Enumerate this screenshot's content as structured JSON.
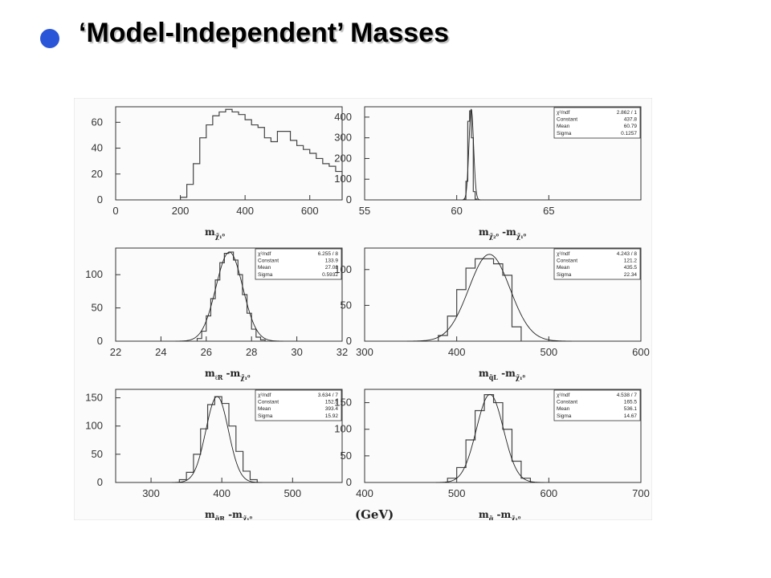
{
  "slide": {
    "title": "‘Model-Independent’ Masses",
    "accent": "#2b55d8"
  },
  "figure": {
    "unit_label": "(GeV)"
  },
  "chart_data": [
    {
      "type": "bar",
      "xlim": [
        0,
        700
      ],
      "ylim": [
        0,
        72
      ],
      "xticks": [
        0,
        200,
        400,
        600
      ],
      "yticks": [
        0,
        20,
        40,
        60
      ],
      "xlabel": {
        "main": "m",
        "sub": "χ̃₁⁰"
      },
      "bin_width": 20,
      "x": [
        200,
        220,
        240,
        260,
        280,
        300,
        320,
        340,
        360,
        380,
        400,
        420,
        440,
        460,
        480,
        500,
        520,
        540,
        560,
        580,
        600,
        620,
        640,
        660,
        680
      ],
      "values": [
        2,
        12,
        28,
        48,
        58,
        65,
        68,
        70,
        68,
        66,
        62,
        58,
        56,
        48,
        45,
        53,
        53,
        46,
        42,
        39,
        36,
        32,
        28,
        26,
        22
      ],
      "stats": null,
      "fit": null
    },
    {
      "type": "bar",
      "xlim": [
        55,
        70
      ],
      "ylim": [
        0,
        450
      ],
      "xticks": [
        55,
        60,
        65
      ],
      "yticks": [
        0,
        100,
        200,
        300,
        400
      ],
      "xlabel": {
        "main": "m",
        "sub": "χ̃₂⁰",
        "mid": "-m",
        "sub2": "χ̃₁⁰"
      },
      "bin_width": 0.1,
      "x": [
        60.4,
        60.5,
        60.6,
        60.7,
        60.8,
        60.9,
        61.0
      ],
      "values": [
        4,
        90,
        380,
        430,
        300,
        40,
        4
      ],
      "stats": {
        "chi2_ndf": "2.862",
        "ndf": "1",
        "constant": "437.8",
        "mean": "60.79",
        "sigma": "0.1257"
      },
      "fit": {
        "constant": 437.8,
        "mean": 60.79,
        "sigma": 0.1257
      }
    },
    {
      "type": "bar",
      "xlim": [
        22,
        32
      ],
      "ylim": [
        0,
        140
      ],
      "xticks": [
        22,
        24,
        26,
        28,
        30,
        32
      ],
      "yticks": [
        0,
        50,
        100
      ],
      "xlabel": {
        "main": "m",
        "sub": "ℓR",
        "mid": "-m",
        "sub2": "χ̃₁⁰"
      },
      "bin_width": 0.2,
      "x": [
        25.6,
        25.8,
        26.0,
        26.2,
        26.4,
        26.6,
        26.8,
        27.0,
        27.2,
        27.4,
        27.6,
        27.8,
        28.0,
        28.2,
        28.4
      ],
      "values": [
        4,
        15,
        38,
        64,
        92,
        118,
        132,
        134,
        122,
        100,
        70,
        42,
        18,
        6,
        2
      ],
      "stats": {
        "chi2_ndf": "6.255",
        "ndf": "8",
        "constant": "133.9",
        "mean": "27.02",
        "sigma": "0.5932"
      },
      "fit": {
        "constant": 133.9,
        "mean": 27.02,
        "sigma": 0.5932
      }
    },
    {
      "type": "bar",
      "xlim": [
        300,
        600
      ],
      "ylim": [
        0,
        130
      ],
      "xticks": [
        300,
        400,
        500,
        600
      ],
      "yticks": [
        0,
        50,
        100
      ],
      "xlabel": {
        "main": "m",
        "sub": "q̃L",
        "mid": "-m",
        "sub2": "χ̃₁⁰"
      },
      "bin_width": 10,
      "x": [
        380,
        390,
        400,
        410,
        420,
        430,
        440,
        450,
        460
      ],
      "values": [
        8,
        35,
        72,
        102,
        115,
        115,
        108,
        92,
        20
      ],
      "stats": {
        "chi2_ndf": "4.243",
        "ndf": "8",
        "constant": "121.2",
        "mean": "435.5",
        "sigma": "22.34"
      },
      "fit": {
        "constant": 121.2,
        "mean": 435.5,
        "sigma": 22.34
      }
    },
    {
      "type": "bar",
      "xlim": [
        250,
        570
      ],
      "ylim": [
        0,
        165
      ],
      "xticks": [
        300,
        400,
        500
      ],
      "yticks": [
        0,
        50,
        100,
        150
      ],
      "xlabel": {
        "main": "m",
        "sub": "q̃R",
        "mid": "-m",
        "sub2": "χ̃₁⁰"
      },
      "bin_width": 10,
      "x": [
        340,
        350,
        360,
        370,
        380,
        390,
        400,
        410,
        420,
        430,
        440
      ],
      "values": [
        5,
        18,
        50,
        95,
        138,
        152,
        140,
        100,
        55,
        20,
        5
      ],
      "stats": {
        "chi2_ndf": "3.634",
        "ndf": "7",
        "constant": "152.5",
        "mean": "393.4",
        "sigma": "15.92"
      },
      "fit": {
        "constant": 152.5,
        "mean": 393.4,
        "sigma": 15.92
      }
    },
    {
      "type": "bar",
      "xlim": [
        400,
        700
      ],
      "ylim": [
        0,
        175
      ],
      "xticks": [
        400,
        500,
        600,
        700
      ],
      "yticks": [
        0,
        50,
        100,
        150
      ],
      "xlabel": {
        "main": "m",
        "sub": "g̃",
        "mid": "-m",
        "sub2": "χ̃₁⁰"
      },
      "bin_width": 10,
      "x": [
        490,
        500,
        510,
        520,
        530,
        540,
        550,
        560,
        570
      ],
      "values": [
        8,
        28,
        80,
        135,
        165,
        150,
        100,
        40,
        8
      ],
      "stats": {
        "chi2_ndf": "4.538",
        "ndf": "7",
        "constant": "165.5",
        "mean": "536.1",
        "sigma": "14.67"
      },
      "fit": {
        "constant": 165.5,
        "mean": 536.1,
        "sigma": 14.67
      }
    }
  ]
}
